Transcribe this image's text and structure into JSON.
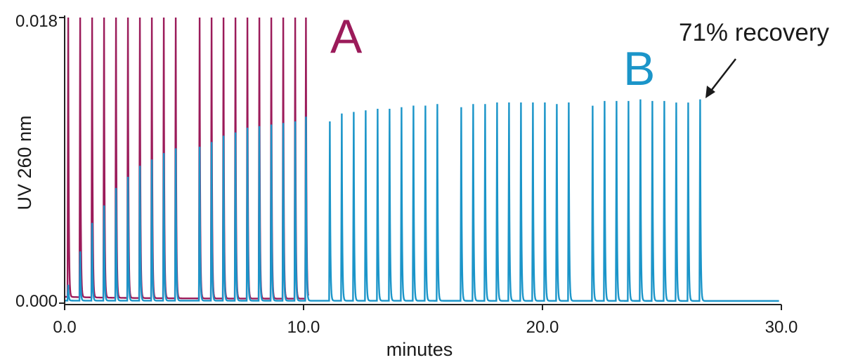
{
  "chart_data": {
    "type": "line",
    "title": "",
    "xlabel": "minutes",
    "ylabel": "UV 260 nm",
    "xlim": [
      0,
      30
    ],
    "ylim": [
      0,
      0.018
    ],
    "x_ticks": [
      "0.0",
      "10.0",
      "20.0",
      "30.0"
    ],
    "y_ticks": [
      "0.000",
      "0.018"
    ],
    "grid": false,
    "colors": {
      "A": "#9b1b5a",
      "B": "#1b95c9",
      "axis": "#222222",
      "text": "#1a1a1a"
    },
    "series": [
      {
        "name": "A",
        "peaks": [
          {
            "t": 0.15,
            "h": 0.018
          },
          {
            "t": 0.65,
            "h": 0.018
          },
          {
            "t": 1.15,
            "h": 0.018
          },
          {
            "t": 1.65,
            "h": 0.018
          },
          {
            "t": 2.15,
            "h": 0.018
          },
          {
            "t": 2.65,
            "h": 0.018
          },
          {
            "t": 3.15,
            "h": 0.018
          },
          {
            "t": 3.65,
            "h": 0.018
          },
          {
            "t": 4.15,
            "h": 0.018
          },
          {
            "t": 4.65,
            "h": 0.018
          },
          {
            "t": 5.65,
            "h": 0.0178
          },
          {
            "t": 6.15,
            "h": 0.018
          },
          {
            "t": 6.65,
            "h": 0.018
          },
          {
            "t": 7.15,
            "h": 0.018
          },
          {
            "t": 7.65,
            "h": 0.018
          },
          {
            "t": 8.15,
            "h": 0.018
          },
          {
            "t": 8.65,
            "h": 0.018
          },
          {
            "t": 9.15,
            "h": 0.018
          },
          {
            "t": 9.65,
            "h": 0.018
          },
          {
            "t": 10.1,
            "h": 0.018
          }
        ]
      },
      {
        "name": "B",
        "peaks": [
          {
            "t": 0.15,
            "h": 0.001
          },
          {
            "t": 0.65,
            "h": 0.0031
          },
          {
            "t": 1.15,
            "h": 0.0049
          },
          {
            "t": 1.65,
            "h": 0.006
          },
          {
            "t": 2.15,
            "h": 0.0071
          },
          {
            "t": 2.65,
            "h": 0.0078
          },
          {
            "t": 3.15,
            "h": 0.0085
          },
          {
            "t": 3.65,
            "h": 0.0089
          },
          {
            "t": 4.15,
            "h": 0.0093
          },
          {
            "t": 4.65,
            "h": 0.0096
          },
          {
            "t": 5.65,
            "h": 0.0097
          },
          {
            "t": 6.15,
            "h": 0.01
          },
          {
            "t": 6.65,
            "h": 0.0104
          },
          {
            "t": 7.15,
            "h": 0.0106
          },
          {
            "t": 7.65,
            "h": 0.0109
          },
          {
            "t": 8.15,
            "h": 0.011
          },
          {
            "t": 8.65,
            "h": 0.0111
          },
          {
            "t": 9.15,
            "h": 0.0112
          },
          {
            "t": 9.65,
            "h": 0.0113
          },
          {
            "t": 10.1,
            "h": 0.0116
          },
          {
            "t": 11.1,
            "h": 0.0113
          },
          {
            "t": 11.6,
            "h": 0.0118
          },
          {
            "t": 12.1,
            "h": 0.0119
          },
          {
            "t": 12.6,
            "h": 0.012
          },
          {
            "t": 13.1,
            "h": 0.0121
          },
          {
            "t": 13.6,
            "h": 0.0121
          },
          {
            "t": 14.1,
            "h": 0.0122
          },
          {
            "t": 14.6,
            "h": 0.0123
          },
          {
            "t": 15.1,
            "h": 0.0123
          },
          {
            "t": 15.6,
            "h": 0.0124
          },
          {
            "t": 16.6,
            "h": 0.0122
          },
          {
            "t": 17.1,
            "h": 0.0124
          },
          {
            "t": 17.6,
            "h": 0.0124
          },
          {
            "t": 18.1,
            "h": 0.0125
          },
          {
            "t": 18.6,
            "h": 0.0125
          },
          {
            "t": 19.1,
            "h": 0.0125
          },
          {
            "t": 19.6,
            "h": 0.0125
          },
          {
            "t": 20.1,
            "h": 0.0125
          },
          {
            "t": 20.6,
            "h": 0.0124
          },
          {
            "t": 21.1,
            "h": 0.0125
          },
          {
            "t": 22.1,
            "h": 0.0123
          },
          {
            "t": 22.6,
            "h": 0.0126
          },
          {
            "t": 23.1,
            "h": 0.0126
          },
          {
            "t": 23.6,
            "h": 0.0126
          },
          {
            "t": 24.1,
            "h": 0.0127
          },
          {
            "t": 24.6,
            "h": 0.0126
          },
          {
            "t": 25.1,
            "h": 0.0126
          },
          {
            "t": 25.6,
            "h": 0.0125
          },
          {
            "t": 26.1,
            "h": 0.0125
          },
          {
            "t": 26.6,
            "h": 0.0127
          }
        ]
      }
    ],
    "series_labels": {
      "A": "A",
      "B": "B"
    },
    "annotations": [
      {
        "text": "71% recovery",
        "points_to": {
          "x": 26.6,
          "y": 0.0127
        }
      }
    ]
  }
}
